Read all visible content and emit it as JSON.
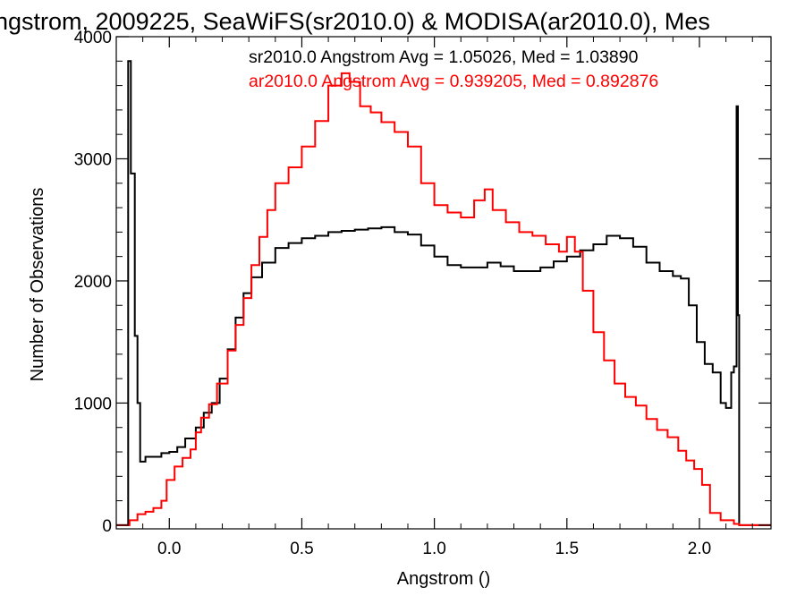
{
  "chart_data": {
    "type": "line",
    "title": "ngstrom, 2009225, SeaWiFS(sr2010.0) & MODISA(ar2010.0), Mes",
    "xlabel": "Angstrom ()",
    "ylabel": "Number of Observations",
    "xlim": [
      -0.2,
      2.27
    ],
    "ylim": [
      -30,
      4000
    ],
    "xticks": [
      {
        "v": 0.0,
        "label": "0.0"
      },
      {
        "v": 0.5,
        "label": "0.5"
      },
      {
        "v": 1.0,
        "label": "1.0"
      },
      {
        "v": 1.5,
        "label": "1.5"
      },
      {
        "v": 2.0,
        "label": "2.0"
      }
    ],
    "yticks": [
      {
        "v": 0,
        "label": "0"
      },
      {
        "v": 1000,
        "label": "1000"
      },
      {
        "v": 2000,
        "label": "2000"
      },
      {
        "v": 3000,
        "label": "3000"
      },
      {
        "v": 4000,
        "label": "4000"
      }
    ],
    "legend_placement": "top-right",
    "grid": false,
    "series": [
      {
        "name": "sr2010.0",
        "color": "#000000",
        "label": "sr2010.0 Angstrom Avg = 1.05026, Med = 1.03890",
        "points": [
          [
            -0.2,
            0
          ],
          [
            -0.16,
            0
          ],
          [
            -0.155,
            3800
          ],
          [
            -0.145,
            2880
          ],
          [
            -0.135,
            2880
          ],
          [
            -0.13,
            1550
          ],
          [
            -0.12,
            1000
          ],
          [
            -0.11,
            520
          ],
          [
            -0.09,
            560
          ],
          [
            -0.06,
            560
          ],
          [
            -0.03,
            590
          ],
          [
            0.0,
            600
          ],
          [
            0.03,
            640
          ],
          [
            0.06,
            710
          ],
          [
            0.1,
            800
          ],
          [
            0.13,
            920
          ],
          [
            0.16,
            1000
          ],
          [
            0.19,
            1200
          ],
          [
            0.22,
            1440
          ],
          [
            0.25,
            1700
          ],
          [
            0.28,
            1900
          ],
          [
            0.31,
            2030
          ],
          [
            0.35,
            2150
          ],
          [
            0.4,
            2270
          ],
          [
            0.45,
            2310
          ],
          [
            0.5,
            2350
          ],
          [
            0.55,
            2370
          ],
          [
            0.6,
            2400
          ],
          [
            0.65,
            2410
          ],
          [
            0.7,
            2420
          ],
          [
            0.75,
            2430
          ],
          [
            0.8,
            2440
          ],
          [
            0.85,
            2400
          ],
          [
            0.9,
            2380
          ],
          [
            0.95,
            2290
          ],
          [
            1.0,
            2200
          ],
          [
            1.05,
            2130
          ],
          [
            1.1,
            2110
          ],
          [
            1.15,
            2110
          ],
          [
            1.2,
            2150
          ],
          [
            1.25,
            2120
          ],
          [
            1.3,
            2080
          ],
          [
            1.35,
            2080
          ],
          [
            1.4,
            2110
          ],
          [
            1.45,
            2160
          ],
          [
            1.5,
            2200
          ],
          [
            1.55,
            2250
          ],
          [
            1.6,
            2300
          ],
          [
            1.65,
            2370
          ],
          [
            1.7,
            2350
          ],
          [
            1.75,
            2280
          ],
          [
            1.8,
            2150
          ],
          [
            1.85,
            2080
          ],
          [
            1.9,
            2040
          ],
          [
            1.93,
            2020
          ],
          [
            1.96,
            1800
          ],
          [
            1.99,
            1500
          ],
          [
            2.02,
            1320
          ],
          [
            2.05,
            1250
          ],
          [
            2.08,
            1000
          ],
          [
            2.1,
            960
          ],
          [
            2.12,
            1250
          ],
          [
            2.13,
            1300
          ],
          [
            2.14,
            3430
          ],
          [
            2.145,
            1720
          ],
          [
            2.15,
            0
          ],
          [
            2.27,
            0
          ]
        ]
      },
      {
        "name": "ar2010.0",
        "color": "#ff0000",
        "label": "ar2010.0 Angstrom Avg = 0.939205, Med = 0.892876",
        "points": [
          [
            -0.2,
            0
          ],
          [
            -0.16,
            0
          ],
          [
            -0.15,
            40
          ],
          [
            -0.12,
            90
          ],
          [
            -0.09,
            110
          ],
          [
            -0.06,
            140
          ],
          [
            -0.03,
            200
          ],
          [
            -0.01,
            370
          ],
          [
            0.02,
            480
          ],
          [
            0.05,
            550
          ],
          [
            0.08,
            620
          ],
          [
            0.1,
            760
          ],
          [
            0.12,
            880
          ],
          [
            0.15,
            990
          ],
          [
            0.18,
            1160
          ],
          [
            0.22,
            1430
          ],
          [
            0.25,
            1640
          ],
          [
            0.28,
            1860
          ],
          [
            0.31,
            2130
          ],
          [
            0.34,
            2360
          ],
          [
            0.37,
            2580
          ],
          [
            0.4,
            2800
          ],
          [
            0.45,
            2930
          ],
          [
            0.5,
            3100
          ],
          [
            0.55,
            3310
          ],
          [
            0.6,
            3600
          ],
          [
            0.65,
            3700
          ],
          [
            0.68,
            3630
          ],
          [
            0.72,
            3430
          ],
          [
            0.76,
            3380
          ],
          [
            0.8,
            3300
          ],
          [
            0.85,
            3220
          ],
          [
            0.9,
            3100
          ],
          [
            0.95,
            2800
          ],
          [
            1.0,
            2620
          ],
          [
            1.05,
            2560
          ],
          [
            1.1,
            2520
          ],
          [
            1.15,
            2660
          ],
          [
            1.19,
            2750
          ],
          [
            1.22,
            2580
          ],
          [
            1.27,
            2480
          ],
          [
            1.32,
            2400
          ],
          [
            1.37,
            2370
          ],
          [
            1.42,
            2300
          ],
          [
            1.47,
            2240
          ],
          [
            1.5,
            2360
          ],
          [
            1.53,
            2240
          ],
          [
            1.56,
            1920
          ],
          [
            1.6,
            1580
          ],
          [
            1.64,
            1350
          ],
          [
            1.68,
            1160
          ],
          [
            1.72,
            1050
          ],
          [
            1.76,
            980
          ],
          [
            1.8,
            870
          ],
          [
            1.84,
            780
          ],
          [
            1.88,
            720
          ],
          [
            1.92,
            610
          ],
          [
            1.95,
            530
          ],
          [
            1.98,
            460
          ],
          [
            2.01,
            330
          ],
          [
            2.04,
            100
          ],
          [
            2.08,
            40
          ],
          [
            2.13,
            10
          ],
          [
            2.15,
            0
          ],
          [
            2.27,
            0
          ]
        ]
      }
    ]
  }
}
